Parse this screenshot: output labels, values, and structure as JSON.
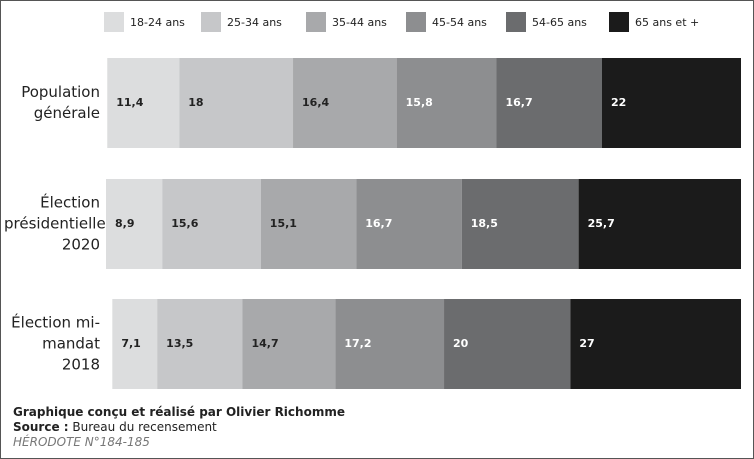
{
  "chart_data": {
    "type": "stacked-bar-horizontal",
    "categories": [
      "Population générale",
      "Élection présidentielle 2020",
      "Élection mi-mandat 2018"
    ],
    "series": [
      {
        "name": "18-24 ans",
        "color": "#dcddde",
        "values": [
          11.4,
          8.9,
          7.1
        ],
        "value_labels": [
          "11,4",
          "8,9",
          "7,1"
        ]
      },
      {
        "name": "25-34 ans",
        "color": "#c6c7c9",
        "values": [
          18,
          15.6,
          13.5
        ],
        "value_labels": [
          "18",
          "15,6",
          "13,5"
        ]
      },
      {
        "name": "35-44 ans",
        "color": "#a8a9ab",
        "values": [
          16.4,
          15.1,
          14.7
        ],
        "value_labels": [
          "16,4",
          "15,1",
          "14,7"
        ]
      },
      {
        "name": "45-54 ans",
        "color": "#8d8e90",
        "values": [
          15.8,
          16.7,
          17.2
        ],
        "value_labels": [
          "15,8",
          "16,7",
          "17,2"
        ]
      },
      {
        "name": "54-65 ans",
        "color": "#6b6c6e",
        "values": [
          16.7,
          18.5,
          20
        ],
        "value_labels": [
          "16,7",
          "18,5",
          "20"
        ]
      },
      {
        "name": "65 ans et +",
        "color": "#1b1b1b",
        "values": [
          22,
          25.7,
          27
        ],
        "value_labels": [
          "22",
          "25,7",
          "27"
        ]
      }
    ],
    "credit": "Graphique conçu et réalisé par Olivier Richomme",
    "source_label": "Source :",
    "source_text": "Bureau du recensement",
    "reference": "HÉRODOTE N°184-185"
  }
}
